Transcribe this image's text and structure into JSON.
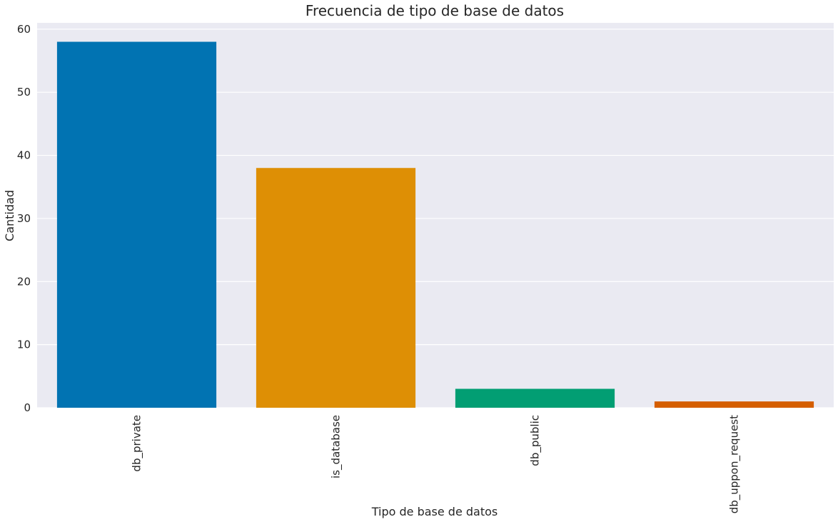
{
  "chart_data": {
    "type": "bar",
    "title": "Frecuencia de tipo de base de datos",
    "xlabel": "Tipo de base de datos",
    "ylabel": "Cantidad",
    "categories": [
      "db_private",
      "is_database",
      "db_public",
      "db_uppon_request"
    ],
    "values": [
      58,
      38,
      3,
      1
    ],
    "colors": [
      "#0173b2",
      "#de8f05",
      "#029e73",
      "#d55e00"
    ],
    "ylim": [
      0,
      61
    ],
    "yticks": [
      0,
      10,
      20,
      30,
      40,
      50,
      60
    ],
    "grid": true,
    "background": "#eaeaf2",
    "x_tick_rotation": "vertical"
  }
}
